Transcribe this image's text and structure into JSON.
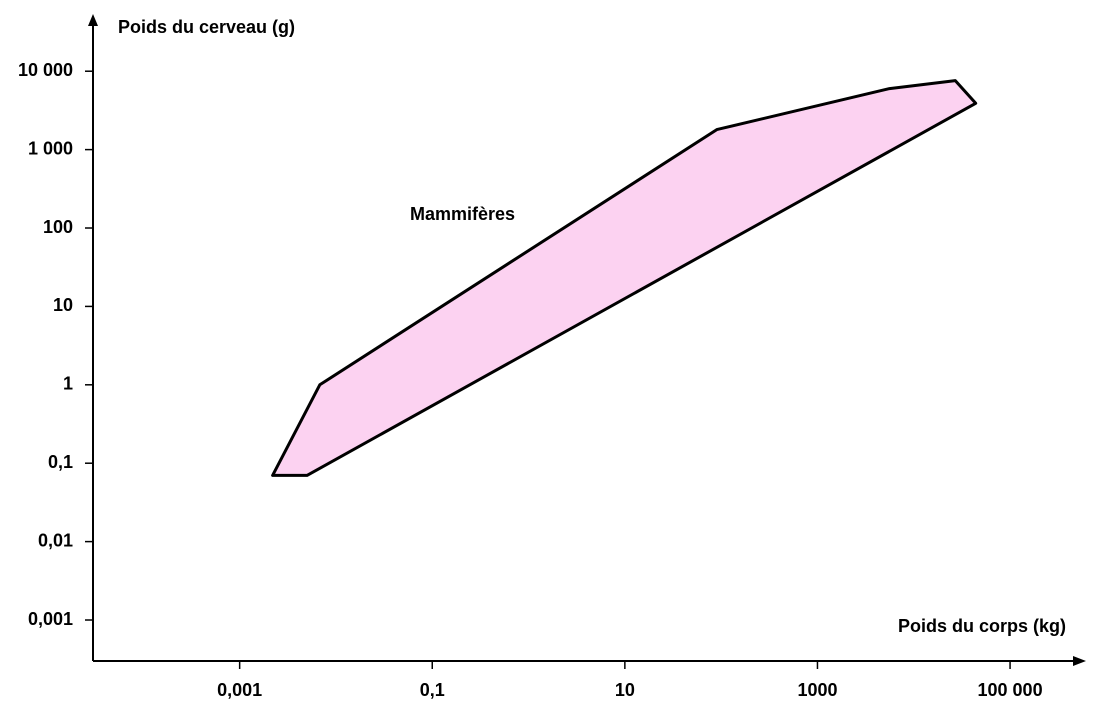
{
  "chart_data": {
    "type": "polygon",
    "x_label": "Poids du corps (kg)",
    "y_label": "Poids du cerveau (g)",
    "log_x": true,
    "log_y": true,
    "xlim": [
      3e-05,
      600000
    ],
    "ylim": [
      0.0003,
      45000
    ],
    "xticks": [
      {
        "value": 0.001,
        "label": "0,001"
      },
      {
        "value": 0.1,
        "label": "0,1"
      },
      10,
      1000,
      {
        "value": 100000,
        "label": "100 000"
      }
    ],
    "yticks": [
      {
        "value": 0.001,
        "label": "0,001"
      },
      {
        "value": 0.01,
        "label": "0,01"
      },
      {
        "value": 0.1,
        "label": "0,1"
      },
      1,
      10,
      100,
      {
        "value": 1000,
        "label": "1 000"
      },
      {
        "value": 10000,
        "label": "10 000"
      }
    ],
    "series": [
      {
        "name": "Mammifères",
        "color": "#fcd2f1",
        "x": [
          0.0022,
          0.005,
          44000,
          27000,
          5600,
          90,
          0.0068
        ],
        "y": [
          0.07,
          0.07,
          3900,
          7600,
          6000,
          1800,
          1
        ]
      }
    ]
  }
}
